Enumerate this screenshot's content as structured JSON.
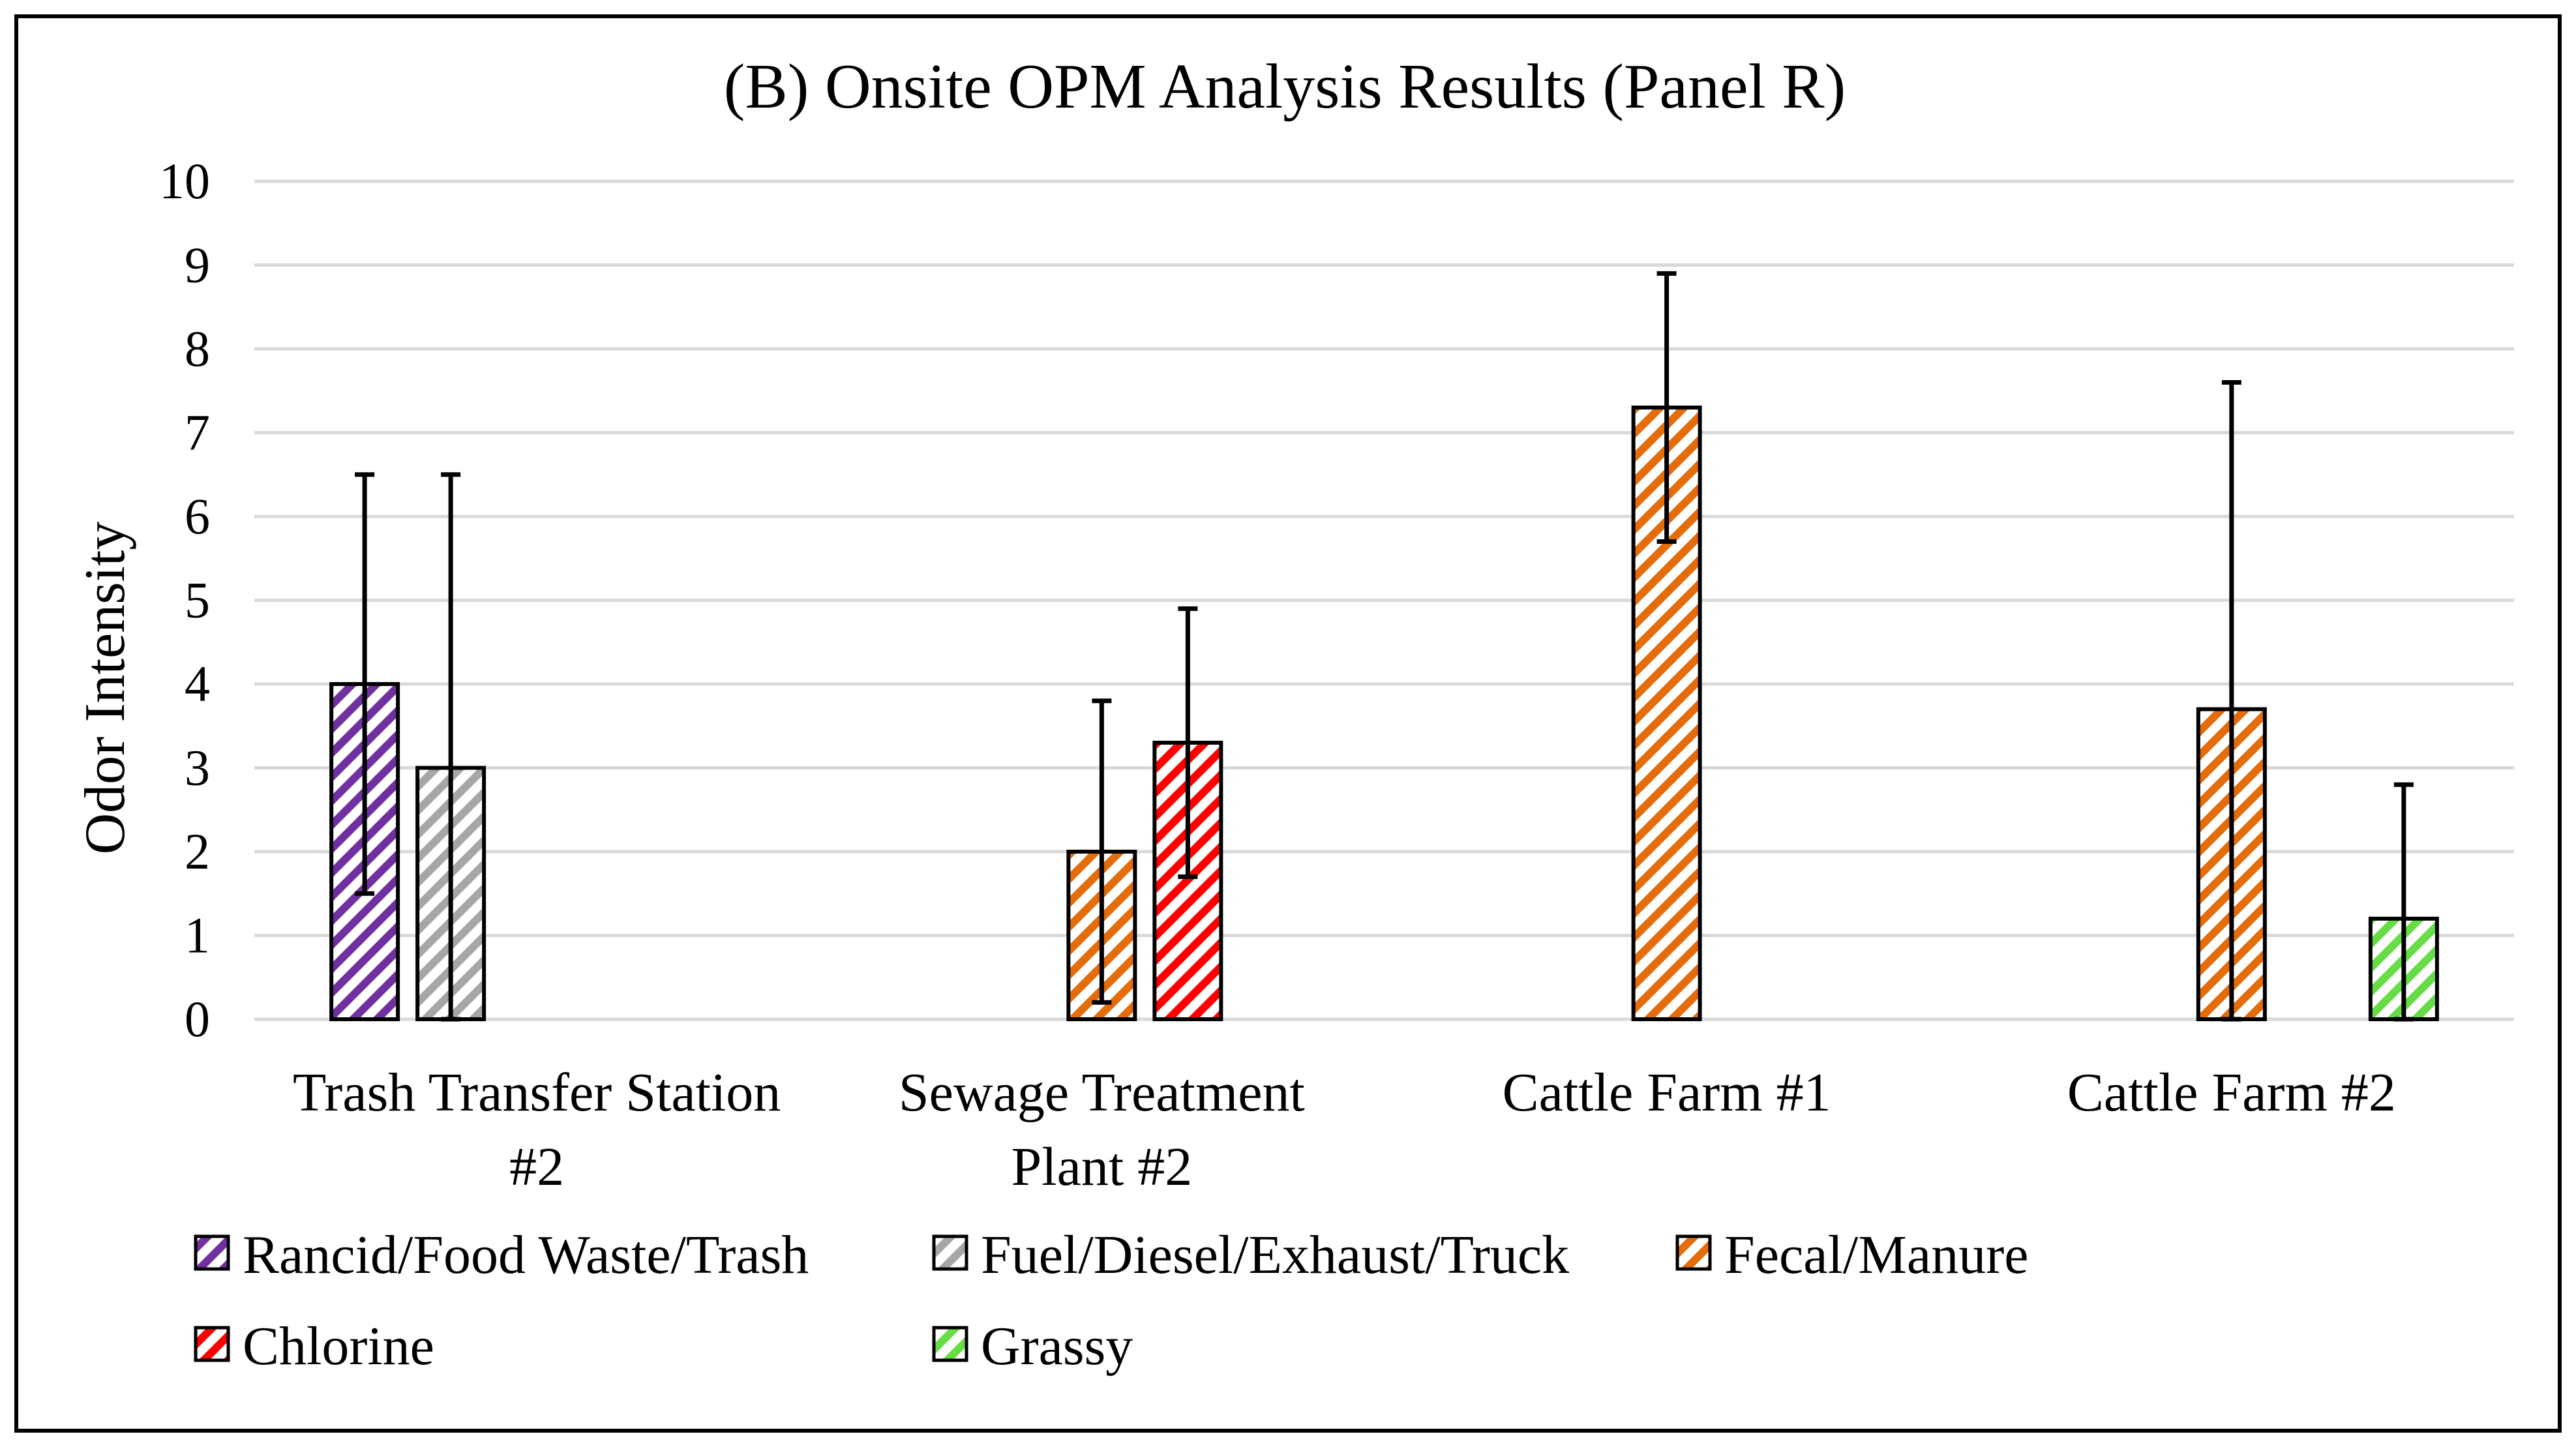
{
  "chart_data": {
    "type": "bar",
    "title": "(B) Onsite OPM Analysis Results (Panel R)",
    "xlabel": "",
    "ylabel": "Odor Intensity",
    "ylim": [
      0,
      10
    ],
    "yticks": [
      0,
      1,
      2,
      3,
      4,
      5,
      6,
      7,
      8,
      9,
      10
    ],
    "grid": true,
    "legend_position": "bottom",
    "categories": [
      [
        "Trash Transfer Station",
        "#2"
      ],
      [
        "Sewage Treatment",
        "Plant #2"
      ],
      [
        "Cattle Farm #1"
      ],
      [
        "Cattle Farm #2"
      ]
    ],
    "series": [
      {
        "name": "Rancid/Food Waste/Trash",
        "color": "#7030A0",
        "values": [
          4.0,
          null,
          null,
          null
        ],
        "err_low": [
          1.5,
          null,
          null,
          null
        ],
        "err_high": [
          6.5,
          null,
          null,
          null
        ]
      },
      {
        "name": "Fuel/Diesel/Exhaust/Truck",
        "color": "#A6A6A6",
        "values": [
          3.0,
          null,
          null,
          null
        ],
        "err_low": [
          0.0,
          null,
          null,
          null
        ],
        "err_high": [
          6.5,
          null,
          null,
          null
        ]
      },
      {
        "name": "Fecal/Manure",
        "color": "#E46C0A",
        "values": [
          null,
          2.0,
          7.3,
          3.7
        ],
        "err_low": [
          null,
          0.2,
          5.7,
          0.0
        ],
        "err_high": [
          null,
          3.8,
          8.9,
          7.6
        ]
      },
      {
        "name": "Chlorine",
        "color": "#FF0000",
        "values": [
          null,
          3.3,
          null,
          null
        ],
        "err_low": [
          null,
          1.7,
          null,
          null
        ],
        "err_high": [
          null,
          4.9,
          null,
          null
        ]
      },
      {
        "name": "Grassy",
        "color": "#66DD44",
        "values": [
          null,
          null,
          null,
          1.2
        ],
        "err_low": [
          null,
          null,
          null,
          0.0
        ],
        "err_high": [
          null,
          null,
          null,
          2.8
        ]
      }
    ]
  }
}
